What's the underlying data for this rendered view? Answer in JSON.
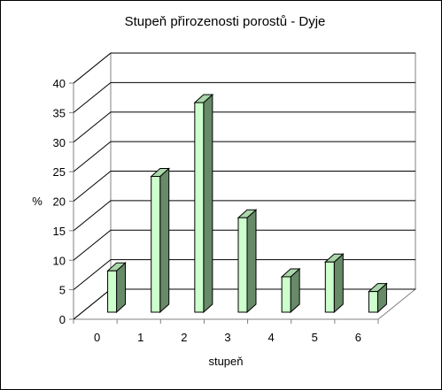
{
  "chart_data": {
    "type": "bar",
    "title": "Stupeň přirozenosti porostů - Dyje",
    "xlabel": "stupeň",
    "ylabel": "%",
    "categories": [
      "0",
      "1",
      "2",
      "3",
      "4",
      "5",
      "6"
    ],
    "values": [
      7,
      23,
      35.5,
      16,
      6,
      8.5,
      3.5
    ],
    "ylim": [
      0,
      40
    ],
    "yticks": [
      "0",
      "5",
      "10",
      "15",
      "20",
      "25",
      "30",
      "35",
      "40"
    ],
    "grid": true,
    "three_d": true,
    "colors": {
      "bar_front": "#ccffcc",
      "bar_side": "#678a68",
      "bar_top": "#aad6aa",
      "grid": "#000000",
      "axis": "#808080"
    }
  }
}
